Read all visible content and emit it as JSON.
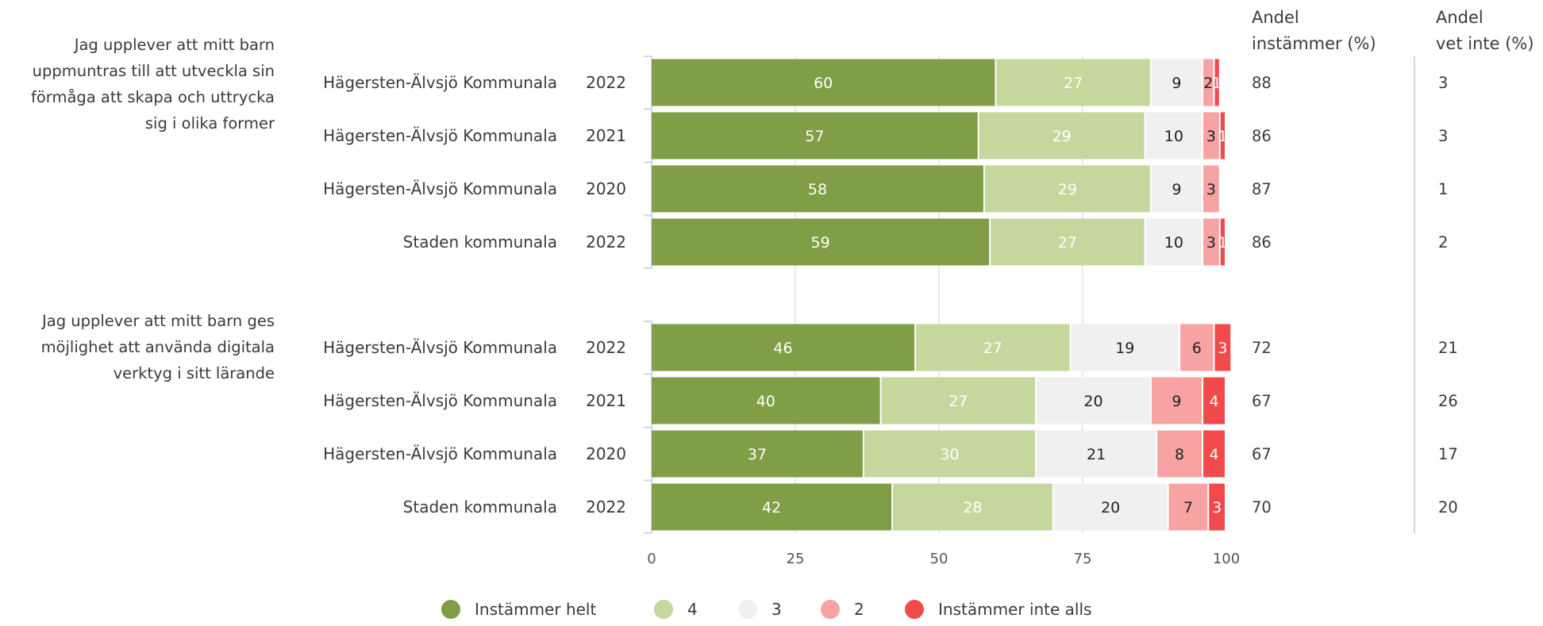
{
  "chart_data": {
    "type": "bar",
    "orientation": "horizontal",
    "stacked": true,
    "xlim": [
      0,
      100
    ],
    "xticks": [
      0,
      25,
      50,
      75,
      100
    ],
    "grid": true,
    "legend_placement": "bottom",
    "column_headers": {
      "share_agree": [
        "Andel",
        "instämmer (%)"
      ],
      "share_dont_know": [
        "Andel",
        "vet inte (%)"
      ]
    },
    "series": [
      {
        "name": "Instämmer helt",
        "color": "#7f9e45",
        "text_color": "#ffffff"
      },
      {
        "name": "4",
        "color": "#c4d79c",
        "text_color": "#ffffff"
      },
      {
        "name": "3",
        "color": "#f0f0f0",
        "text_color": "#222222"
      },
      {
        "name": "2",
        "color": "#f7a3a3",
        "text_color": "#222222"
      },
      {
        "name": "Instämmer inte alls",
        "color": "#f24a4a",
        "text_color": "#ffffff"
      }
    ],
    "groups": [
      {
        "question": [
          "Jag upplever att mitt barn",
          "uppmuntras till att utveckla sin",
          "förmåga att skapa och uttrycka",
          "sig i olika former"
        ],
        "rows": [
          {
            "label": "Hägersten-Älvsjö Kommunala",
            "year": "2022",
            "values": [
              60,
              27,
              9,
              2,
              1
            ],
            "agree": "88",
            "dont_know": "3"
          },
          {
            "label": "Hägersten-Älvsjö Kommunala",
            "year": "2021",
            "values": [
              57,
              29,
              10,
              3,
              1
            ],
            "agree": "86",
            "dont_know": "3"
          },
          {
            "label": "Hägersten-Älvsjö Kommunala",
            "year": "2020",
            "values": [
              58,
              29,
              9,
              3,
              0
            ],
            "agree": "87",
            "dont_know": "1"
          },
          {
            "label": "Staden kommunala",
            "year": "2022",
            "values": [
              59,
              27,
              10,
              3,
              1
            ],
            "agree": "86",
            "dont_know": "2"
          }
        ]
      },
      {
        "question": [
          "Jag upplever att mitt barn ges",
          "möjlighet att använda digitala",
          "verktyg i sitt lärande"
        ],
        "rows": [
          {
            "label": "Hägersten-Älvsjö Kommunala",
            "year": "2022",
            "values": [
              46,
              27,
              19,
              6,
              3
            ],
            "agree": "72",
            "dont_know": "21"
          },
          {
            "label": "Hägersten-Älvsjö Kommunala",
            "year": "2021",
            "values": [
              40,
              27,
              20,
              9,
              4
            ],
            "agree": "67",
            "dont_know": "26"
          },
          {
            "label": "Hägersten-Älvsjö Kommunala",
            "year": "2020",
            "values": [
              37,
              30,
              21,
              8,
              4
            ],
            "agree": "67",
            "dont_know": "17"
          },
          {
            "label": "Staden kommunala",
            "year": "2022",
            "values": [
              42,
              28,
              20,
              7,
              3
            ],
            "agree": "70",
            "dont_know": "20"
          }
        ]
      }
    ]
  }
}
